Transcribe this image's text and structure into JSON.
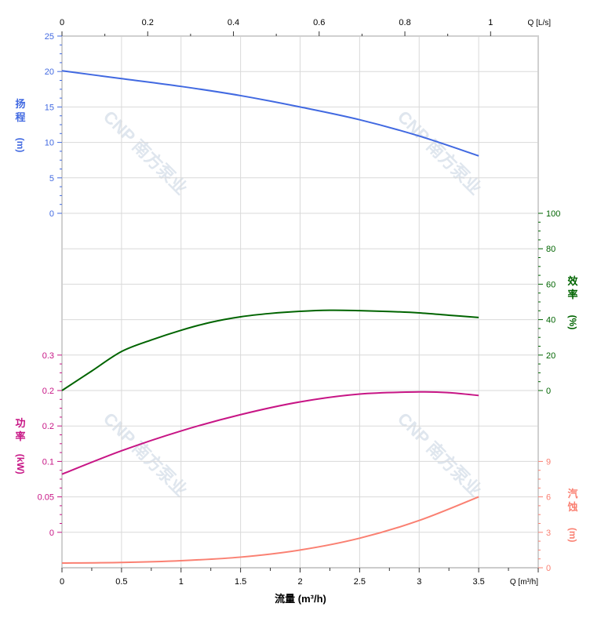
{
  "chart_data": {
    "type": "line",
    "xlabel": "流量 (m³/h)",
    "x_unit_bottom": "Q [m³/h]",
    "x_unit_top": "Q [L/s]",
    "xlim": [
      0,
      4
    ],
    "x_ticks": [
      "0",
      "0.5",
      "1",
      "1.5",
      "2",
      "2.5",
      "3",
      "3.5"
    ],
    "top_xlim": [
      0,
      1.111
    ],
    "top_ticks": [
      "0",
      "0.2",
      "0.4",
      "0.6",
      "0.8",
      "1"
    ],
    "grid": true,
    "watermark": "CNP 南方泵业",
    "axes": {
      "head": {
        "label_chars": [
          "扬",
          "程"
        ],
        "unit": "(m)",
        "color": "#4169e1",
        "ticks": [
          "25",
          "20",
          "15",
          "10",
          "5",
          "0"
        ],
        "ylim": [
          0,
          25
        ]
      },
      "efficiency": {
        "label_chars": [
          "效",
          "率"
        ],
        "unit": "(%)",
        "color": "#006400",
        "ticks": [
          "100",
          "80",
          "60",
          "40",
          "20",
          "0"
        ],
        "ylim": [
          0,
          100
        ]
      },
      "power": {
        "label_chars": [
          "功",
          "率"
        ],
        "unit": "(kW)",
        "color": "#c71585",
        "ticks": [
          "0.3",
          "0.2",
          "0.2",
          "0.1",
          "0.05",
          "0"
        ],
        "ylim": [
          0,
          0.25
        ]
      },
      "npsh": {
        "label_chars": [
          "汽",
          "蚀"
        ],
        "unit": "(m)",
        "color": "#fa8072",
        "ticks": [
          "9",
          "6",
          "3",
          "0"
        ],
        "ylim": [
          0,
          9
        ]
      }
    },
    "series": [
      {
        "axis": "head",
        "x": [
          0,
          0.5,
          1,
          1.5,
          2,
          2.5,
          3,
          3.5
        ],
        "y": [
          20.1,
          19.0,
          17.9,
          16.6,
          15.0,
          13.2,
          10.9,
          8.1
        ]
      },
      {
        "axis": "efficiency",
        "x": [
          0,
          0.25,
          0.5,
          0.75,
          1,
          1.25,
          1.5,
          1.75,
          2,
          2.25,
          2.5,
          2.75,
          3,
          3.25,
          3.5
        ],
        "y": [
          0,
          11,
          22,
          28.5,
          34,
          38.5,
          41.6,
          43.5,
          44.7,
          45.3,
          45.1,
          44.6,
          43.8,
          42.5,
          41.2
        ]
      },
      {
        "axis": "power",
        "x": [
          0,
          0.5,
          1,
          1.5,
          2,
          2.5,
          3,
          3.25,
          3.5
        ],
        "y": [
          0.082,
          0.115,
          0.143,
          0.166,
          0.184,
          0.195,
          0.198,
          0.197,
          0.193
        ]
      },
      {
        "axis": "npsh",
        "x": [
          0,
          0.5,
          1,
          1.5,
          2,
          2.5,
          3,
          3.5
        ],
        "y": [
          0.4,
          0.45,
          0.6,
          0.9,
          1.5,
          2.5,
          4.0,
          6.0
        ]
      }
    ]
  }
}
